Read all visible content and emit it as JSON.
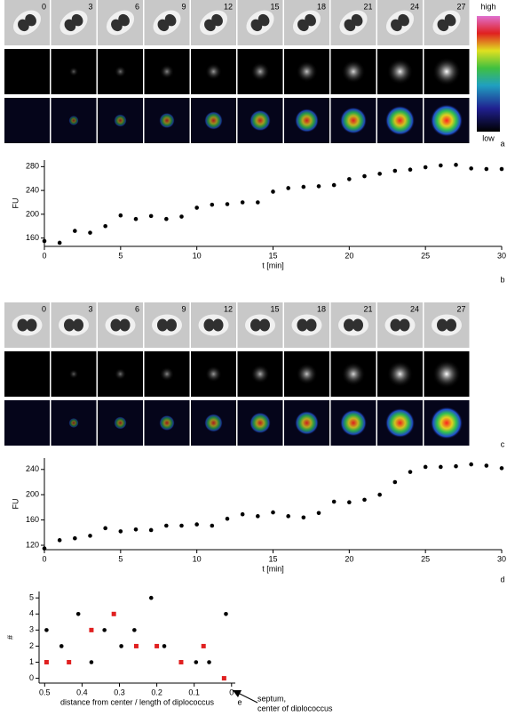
{
  "microscopy": [
    {
      "frames": [
        "0",
        "3",
        "6",
        "9",
        "12",
        "15",
        "18",
        "21",
        "24",
        "27"
      ],
      "label": "a",
      "colorbar": {
        "high": "high",
        "low": "low"
      }
    },
    {
      "frames": [
        "0",
        "3",
        "6",
        "9",
        "12",
        "15",
        "18",
        "21",
        "24",
        "27"
      ],
      "label": "c"
    }
  ],
  "chart_data": [
    {
      "type": "scatter",
      "panel": "b",
      "ylabel": "FU",
      "xlabel": "t [min]",
      "color": "#000000",
      "x": [
        0,
        1,
        2,
        3,
        4,
        5,
        6,
        7,
        8,
        9,
        10,
        11,
        12,
        13,
        14,
        15,
        16,
        17,
        18,
        19,
        20,
        21,
        22,
        23,
        24,
        25,
        26,
        27,
        28,
        29,
        30
      ],
      "values": [
        155,
        152,
        172,
        169,
        180,
        198,
        192,
        197,
        192,
        196,
        211,
        216,
        217,
        220,
        220,
        238,
        244,
        246,
        247,
        249,
        259,
        264,
        268,
        273,
        275,
        279,
        282,
        283,
        277,
        276,
        276
      ],
      "xlim": [
        0,
        30
      ],
      "xticks": [
        0,
        5,
        10,
        15,
        20,
        25,
        30
      ],
      "ylim": [
        146,
        291
      ],
      "yticks": [
        160,
        200,
        240,
        280
      ]
    },
    {
      "type": "scatter",
      "panel": "d",
      "ylabel": "FU",
      "xlabel": "t [min]",
      "color": "#000000",
      "x": [
        0,
        1,
        2,
        3,
        4,
        5,
        6,
        7,
        8,
        9,
        10,
        11,
        12,
        13,
        14,
        15,
        16,
        17,
        18,
        19,
        20,
        21,
        22,
        23,
        24,
        25,
        26,
        27,
        28,
        29,
        30
      ],
      "values": [
        115,
        128,
        131,
        135,
        147,
        142,
        145,
        144,
        151,
        151,
        153,
        151,
        162,
        169,
        166,
        172,
        166,
        164,
        171,
        189,
        188,
        192,
        200,
        220,
        236,
        244,
        244,
        245,
        248,
        246,
        242
      ],
      "xlim": [
        0,
        30
      ],
      "xticks": [
        0,
        5,
        10,
        15,
        20,
        25,
        30
      ],
      "ylim": [
        113,
        258
      ],
      "yticks": [
        120,
        160,
        200,
        240
      ]
    },
    {
      "type": "scatter",
      "panel": "e",
      "ylabel": "#",
      "xlabel": "distance from center / length of diplococcus",
      "annotation": [
        "septum,",
        "center of diplococcus"
      ],
      "series": [
        {
          "color": "#000000",
          "marker": "circle",
          "x": [
            0.495,
            0.455,
            0.41,
            0.375,
            0.34,
            0.295,
            0.26,
            0.215,
            0.18,
            0.095,
            0.06,
            0.015
          ],
          "values": [
            3,
            2,
            4,
            1,
            3,
            2,
            3,
            5,
            2,
            1,
            1,
            4
          ]
        },
        {
          "color": "#e02020",
          "marker": "square",
          "x": [
            0.495,
            0.435,
            0.375,
            0.315,
            0.255,
            0.2,
            0.135,
            0.075,
            0.02
          ],
          "values": [
            1,
            1,
            3,
            4,
            2,
            2,
            1,
            2,
            0
          ]
        }
      ],
      "xlim": [
        0.515,
        -0.01
      ],
      "xticks": [
        0.5,
        0.4,
        0.3,
        0.2,
        0.1,
        0
      ],
      "ylim": [
        -0.3,
        5.4
      ],
      "yticks": [
        0,
        1,
        2,
        3,
        4,
        5
      ]
    }
  ]
}
